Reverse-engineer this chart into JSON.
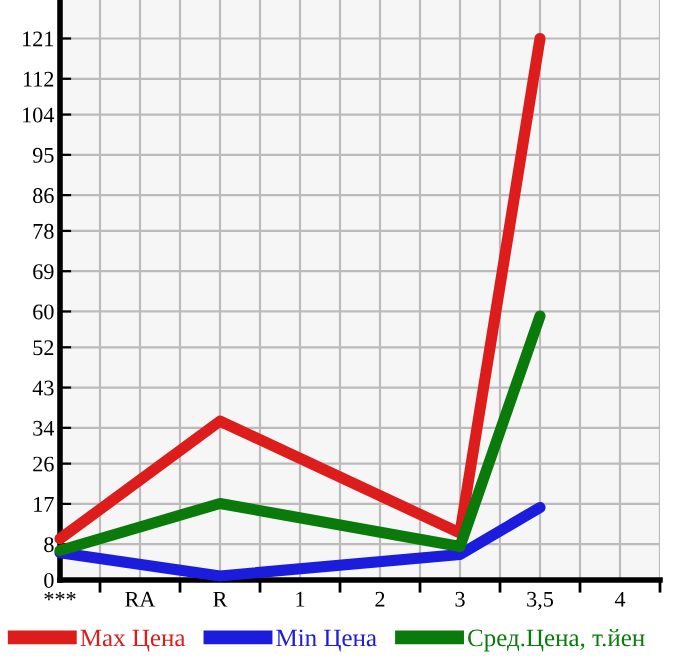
{
  "chart_data": {
    "type": "line",
    "categories": [
      "***",
      "RA",
      "R",
      "1",
      "2",
      "3",
      "3,5",
      "4"
    ],
    "series": [
      {
        "name": "Max Цена",
        "color": "#dd1c1c",
        "values": [
          9.2,
          null,
          35.5,
          null,
          null,
          10.5,
          121,
          null
        ]
      },
      {
        "name": "Min Цена",
        "color": "#1c1cdd",
        "values": [
          6.1,
          null,
          0.9,
          null,
          null,
          5.7,
          16.2,
          null
        ]
      },
      {
        "name": "Сред.Цена, т.йен",
        "color": "#0a7a0a",
        "values": [
          6.6,
          null,
          17.1,
          null,
          null,
          7.5,
          59,
          null
        ]
      }
    ],
    "ylim": [
      0,
      129.6
    ],
    "yticks": [
      0,
      8,
      17,
      26,
      34,
      43,
      52,
      60,
      69,
      78,
      86,
      95,
      104,
      112,
      121
    ],
    "grid": true,
    "legend": "bottom",
    "marker": "none",
    "line_style": "solid"
  }
}
